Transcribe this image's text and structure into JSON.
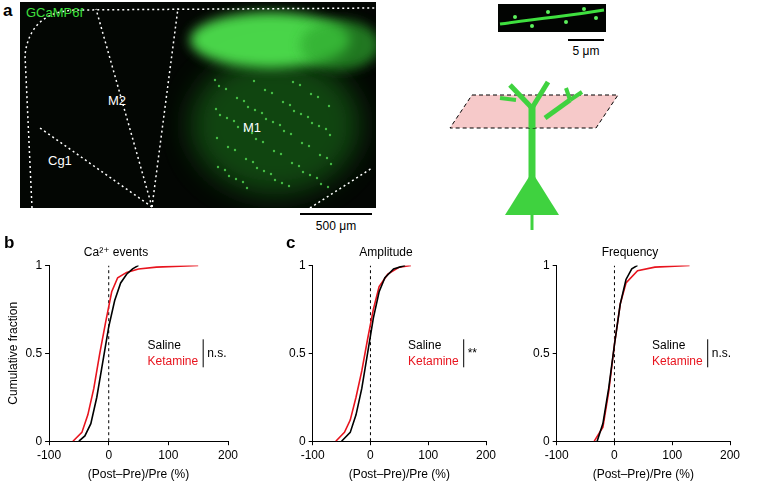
{
  "panel_a": {
    "panel": "a",
    "label": "GCaMP6f",
    "regions": [
      "Cg1",
      "M2",
      "M1"
    ],
    "scale_bar": "500 μm",
    "inset_scale_bar": "5 μm"
  },
  "chart_data": [
    {
      "panel": "b",
      "type": "line",
      "title": "Ca²⁺ events",
      "x_label": "(Post–Pre)/Pre (%)",
      "y_label": "Cumulative fraction",
      "xlim": [
        -100,
        200
      ],
      "xticks": [
        -100,
        0,
        100,
        200
      ],
      "ylim": [
        0,
        1
      ],
      "yticks": [
        0,
        0.5,
        1
      ],
      "reference_x": 0,
      "annotation": "n.s.",
      "series": [
        {
          "name": "Saline",
          "color": "#000000",
          "x": [
            -50,
            -40,
            -30,
            -20,
            -10,
            0,
            10,
            20,
            30,
            40,
            50
          ],
          "values": [
            0,
            0.03,
            0.1,
            0.25,
            0.45,
            0.65,
            0.8,
            0.9,
            0.95,
            0.98,
            1
          ]
        },
        {
          "name": "Ketamine",
          "color": "#e8141e",
          "x": [
            -60,
            -45,
            -35,
            -25,
            -15,
            -5,
            5,
            15,
            30,
            50,
            80,
            150
          ],
          "values": [
            0,
            0.05,
            0.15,
            0.3,
            0.5,
            0.68,
            0.85,
            0.93,
            0.96,
            0.98,
            0.99,
            1
          ]
        }
      ]
    },
    {
      "panel": "c",
      "type": "line",
      "title": "Amplitude",
      "x_label": "(Post–Pre)/Pre (%)",
      "xlim": [
        -100,
        200
      ],
      "xticks": [
        -100,
        0,
        100,
        200
      ],
      "ylim": [
        0,
        1
      ],
      "yticks": [
        0,
        0.5,
        1
      ],
      "reference_x": 0,
      "annotation": "**",
      "series": [
        {
          "name": "Saline",
          "color": "#000000",
          "x": [
            -50,
            -35,
            -25,
            -15,
            -5,
            5,
            15,
            25,
            40,
            60
          ],
          "values": [
            0,
            0.05,
            0.15,
            0.3,
            0.5,
            0.7,
            0.85,
            0.93,
            0.98,
            1
          ]
        },
        {
          "name": "Ketamine",
          "color": "#e8141e",
          "x": [
            -60,
            -45,
            -35,
            -25,
            -15,
            -5,
            5,
            15,
            30,
            50,
            70
          ],
          "values": [
            0,
            0.05,
            0.12,
            0.25,
            0.4,
            0.58,
            0.75,
            0.88,
            0.95,
            0.99,
            1
          ]
        }
      ]
    },
    {
      "type": "line",
      "title": "Frequency",
      "x_label": "(Post–Pre)/Pre (%)",
      "xlim": [
        -100,
        200
      ],
      "xticks": [
        -100,
        0,
        100,
        200
      ],
      "ylim": [
        0,
        1
      ],
      "yticks": [
        0,
        0.5,
        1
      ],
      "reference_x": 0,
      "annotation": "n.s.",
      "series": [
        {
          "name": "Saline",
          "color": "#000000",
          "x": [
            -30,
            -20,
            -10,
            0,
            10,
            20,
            30,
            40
          ],
          "values": [
            0,
            0.1,
            0.3,
            0.55,
            0.78,
            0.92,
            0.98,
            1
          ]
        },
        {
          "name": "Ketamine",
          "color": "#e8141e",
          "x": [
            -35,
            -20,
            -10,
            0,
            10,
            20,
            40,
            70,
            130
          ],
          "values": [
            0,
            0.08,
            0.28,
            0.55,
            0.78,
            0.9,
            0.97,
            0.99,
            1
          ]
        }
      ]
    }
  ]
}
